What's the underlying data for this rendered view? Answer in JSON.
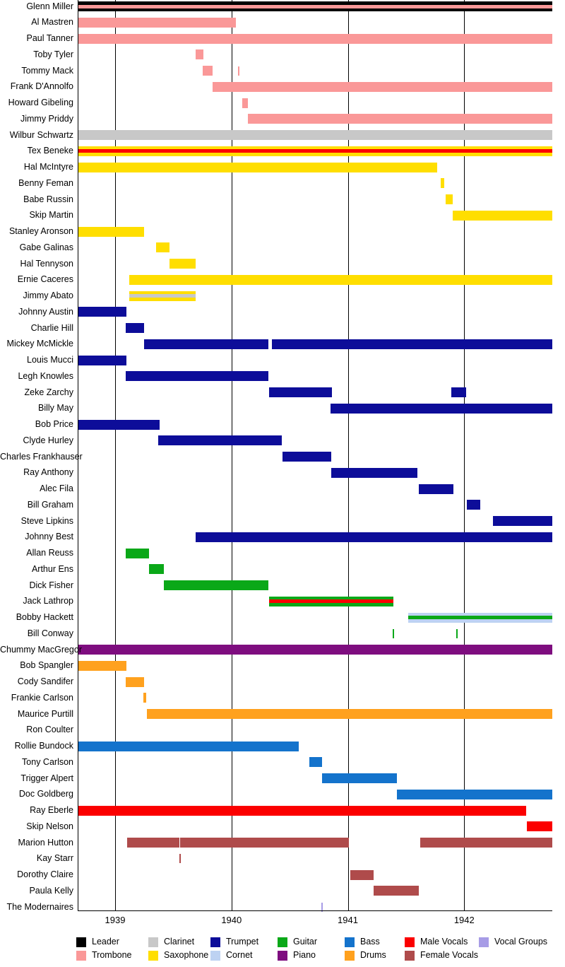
{
  "chart_data": {
    "type": "bar",
    "subtype": "gantt-timeline",
    "axis": {
      "x_min": 1938.68,
      "x_max": 1942.755,
      "tick_years": [
        1939,
        1940,
        1941,
        1942
      ],
      "grid": "vertical-lines-on"
    },
    "instruments": {
      "leader": {
        "label": "Leader",
        "color": "#000000"
      },
      "trombone": {
        "label": "Trombone",
        "color": "#FA9898"
      },
      "clarinet": {
        "label": "Clarinet",
        "color": "#C8C8C8"
      },
      "saxophone": {
        "label": "Saxophone",
        "color": "#FFDE00"
      },
      "trumpet": {
        "label": "Trumpet",
        "color": "#0D0D99"
      },
      "cornet": {
        "label": "Cornet",
        "color": "#BDD2F2"
      },
      "guitar": {
        "label": "Guitar",
        "color": "#0AA818"
      },
      "piano": {
        "label": "Piano",
        "color": "#7E0D7F"
      },
      "bass": {
        "label": "Bass",
        "color": "#1473CC"
      },
      "drums": {
        "label": "Drums",
        "color": "#FFA11E"
      },
      "male_vocals": {
        "label": "Male Vocals",
        "color": "#FB0000"
      },
      "female_vocals": {
        "label": "Female Vocals",
        "color": "#AF4B4B"
      },
      "vocal_groups": {
        "label": "Vocal Groups",
        "color": "#A79CE6"
      }
    },
    "members": [
      {
        "name": "Glenn Miller",
        "instrument": "leader",
        "stripe": "trombone",
        "segments": [
          [
            1938.68,
            1942.755
          ]
        ]
      },
      {
        "name": "Al Mastren",
        "instrument": "trombone",
        "segments": [
          [
            1938.68,
            1940.04
          ]
        ]
      },
      {
        "name": "Paul Tanner",
        "instrument": "trombone",
        "segments": [
          [
            1938.68,
            1942.755
          ]
        ]
      },
      {
        "name": "Toby Tyler",
        "instrument": "trombone",
        "segments": [
          [
            1939.69,
            1939.76
          ]
        ]
      },
      {
        "name": "Tommy Mack",
        "instrument": "trombone",
        "segments": [
          [
            1939.75,
            1939.84
          ]
        ],
        "tick_marks": [
          1940.06
        ]
      },
      {
        "name": "Frank D'Annolfo",
        "instrument": "trombone",
        "segments": [
          [
            1939.84,
            1942.755
          ]
        ]
      },
      {
        "name": "Howard Gibeling",
        "instrument": "trombone",
        "segments": [
          [
            1940.09,
            1940.14
          ]
        ]
      },
      {
        "name": "Jimmy Priddy",
        "instrument": "trombone",
        "segments": [
          [
            1940.14,
            1942.755
          ]
        ]
      },
      {
        "name": "Wilbur Schwartz",
        "instrument": "clarinet",
        "segments": [
          [
            1938.68,
            1942.755
          ]
        ]
      },
      {
        "name": "Tex Beneke",
        "instrument": "saxophone",
        "stripe": "male_vocals",
        "segments": [
          [
            1938.68,
            1942.755
          ]
        ]
      },
      {
        "name": "Hal McIntyre",
        "instrument": "saxophone",
        "segments": [
          [
            1938.68,
            1941.77
          ]
        ]
      },
      {
        "name": "Benny Feman",
        "instrument": "saxophone",
        "segments": [
          [
            1941.8,
            1941.83
          ]
        ]
      },
      {
        "name": "Babe Russin",
        "instrument": "saxophone",
        "segments": [
          [
            1941.84,
            1941.9
          ]
        ]
      },
      {
        "name": "Skip Martin",
        "instrument": "saxophone",
        "segments": [
          [
            1941.9,
            1942.755
          ]
        ]
      },
      {
        "name": "Stanley Aronson",
        "instrument": "saxophone",
        "segments": [
          [
            1938.68,
            1939.25
          ]
        ]
      },
      {
        "name": "Gabe Galinas",
        "instrument": "saxophone",
        "segments": [
          [
            1939.35,
            1939.47
          ]
        ]
      },
      {
        "name": "Hal Tennyson",
        "instrument": "saxophone",
        "segments": [
          [
            1939.47,
            1939.69
          ]
        ]
      },
      {
        "name": "Ernie Caceres",
        "instrument": "saxophone",
        "segments": [
          [
            1939.12,
            1942.755
          ]
        ]
      },
      {
        "name": "Jimmy Abato",
        "instrument": "saxophone",
        "stripe": "clarinet",
        "segments": [
          [
            1939.12,
            1939.69
          ]
        ]
      },
      {
        "name": "Johnny Austin",
        "instrument": "trumpet",
        "segments": [
          [
            1938.68,
            1939.1
          ]
        ]
      },
      {
        "name": "Charlie Hill",
        "instrument": "trumpet",
        "segments": [
          [
            1939.09,
            1939.25
          ]
        ]
      },
      {
        "name": "Mickey McMickle",
        "instrument": "trumpet",
        "segments": [
          [
            1939.25,
            1940.32
          ],
          [
            1940.35,
            1942.755
          ]
        ]
      },
      {
        "name": "Louis Mucci",
        "instrument": "trumpet",
        "segments": [
          [
            1938.68,
            1939.1
          ]
        ]
      },
      {
        "name": "Legh Knowles",
        "instrument": "trumpet",
        "segments": [
          [
            1939.09,
            1940.32
          ]
        ]
      },
      {
        "name": "Zeke Zarchy",
        "instrument": "trumpet",
        "segments": [
          [
            1940.32,
            1940.86
          ],
          [
            1941.89,
            1942.02
          ]
        ]
      },
      {
        "name": "Billy May",
        "instrument": "trumpet",
        "segments": [
          [
            1940.85,
            1942.755
          ]
        ]
      },
      {
        "name": "Bob Price",
        "instrument": "trumpet",
        "segments": [
          [
            1938.68,
            1939.38
          ]
        ]
      },
      {
        "name": "Clyde Hurley",
        "instrument": "trumpet",
        "segments": [
          [
            1939.37,
            1940.43
          ]
        ]
      },
      {
        "name": "Charles Frankhauser",
        "instrument": "trumpet",
        "segments": [
          [
            1940.44,
            1940.86
          ]
        ]
      },
      {
        "name": "Ray Anthony",
        "instrument": "trumpet",
        "segments": [
          [
            1940.86,
            1941.6
          ]
        ]
      },
      {
        "name": "Alec Fila",
        "instrument": "trumpet",
        "segments": [
          [
            1941.61,
            1941.91
          ]
        ]
      },
      {
        "name": "Bill Graham",
        "instrument": "trumpet",
        "segments": [
          [
            1942.02,
            1942.14
          ]
        ]
      },
      {
        "name": "Steve Lipkins",
        "instrument": "trumpet",
        "segments": [
          [
            1942.25,
            1942.755
          ]
        ]
      },
      {
        "name": "Johnny Best",
        "instrument": "trumpet",
        "segments": [
          [
            1939.69,
            1942.755
          ]
        ]
      },
      {
        "name": "Allan Reuss",
        "instrument": "guitar",
        "segments": [
          [
            1939.09,
            1939.29
          ]
        ]
      },
      {
        "name": "Arthur Ens",
        "instrument": "guitar",
        "segments": [
          [
            1939.29,
            1939.42
          ]
        ]
      },
      {
        "name": "Dick Fisher",
        "instrument": "guitar",
        "segments": [
          [
            1939.42,
            1940.32
          ]
        ]
      },
      {
        "name": "Jack Lathrop",
        "instrument": "guitar",
        "stripe": "male_vocals",
        "segments": [
          [
            1940.32,
            1941.39
          ]
        ]
      },
      {
        "name": "Bobby Hackett",
        "instrument": "cornet",
        "stripe": "guitar",
        "segments": [
          [
            1941.52,
            1942.755
          ]
        ]
      },
      {
        "name": "Bill Conway",
        "instrument": "guitar",
        "segments": [],
        "tick_marks": [
          1941.39,
          1941.94
        ]
      },
      {
        "name": "Chummy MacGregor",
        "instrument": "piano",
        "segments": [
          [
            1938.68,
            1942.755
          ]
        ]
      },
      {
        "name": "Bob Spangler",
        "instrument": "drums",
        "segments": [
          [
            1938.68,
            1939.1
          ]
        ]
      },
      {
        "name": "Cody Sandifer",
        "instrument": "drums",
        "segments": [
          [
            1939.09,
            1939.25
          ]
        ]
      },
      {
        "name": "Frankie Carlson",
        "instrument": "drums",
        "segments": [
          [
            1939.24,
            1939.27
          ]
        ]
      },
      {
        "name": "Maurice Purtill",
        "instrument": "drums",
        "segments": [
          [
            1939.27,
            1942.755
          ]
        ]
      },
      {
        "name": "Ron Coulter",
        "instrument": "drums",
        "segments": []
      },
      {
        "name": "Rollie Bundock",
        "instrument": "bass",
        "segments": [
          [
            1938.68,
            1940.58
          ]
        ]
      },
      {
        "name": "Tony Carlson",
        "instrument": "bass",
        "segments": [
          [
            1940.67,
            1940.78
          ]
        ]
      },
      {
        "name": "Trigger Alpert",
        "instrument": "bass",
        "segments": [
          [
            1940.78,
            1941.42
          ]
        ]
      },
      {
        "name": "Doc Goldberg",
        "instrument": "bass",
        "segments": [
          [
            1941.42,
            1942.755
          ]
        ]
      },
      {
        "name": "Ray Eberle",
        "instrument": "male_vocals",
        "segments": [
          [
            1938.68,
            1942.53
          ]
        ]
      },
      {
        "name": "Skip Nelson",
        "instrument": "male_vocals",
        "segments": [
          [
            1942.54,
            1942.755
          ]
        ]
      },
      {
        "name": "Marion Hutton",
        "instrument": "female_vocals",
        "segments": [
          [
            1939.1,
            1939.55
          ],
          [
            1939.56,
            1941.01
          ],
          [
            1941.62,
            1942.755
          ]
        ]
      },
      {
        "name": "Kay Starr",
        "instrument": "female_vocals",
        "segments": [],
        "tick_marks": [
          1939.56
        ]
      },
      {
        "name": "Dorothy Claire",
        "instrument": "female_vocals",
        "segments": [
          [
            1941.02,
            1941.22
          ]
        ]
      },
      {
        "name": "Paula Kelly",
        "instrument": "female_vocals",
        "segments": [
          [
            1941.22,
            1941.61
          ]
        ]
      },
      {
        "name": "The Modernaires",
        "instrument": "vocal_groups",
        "segments": [],
        "tick_marks": [
          1940.78
        ]
      }
    ],
    "legend_columns": [
      [
        "leader",
        "trombone"
      ],
      [
        "clarinet",
        "saxophone"
      ],
      [
        "trumpet",
        "cornet"
      ],
      [
        "guitar",
        "piano"
      ],
      [
        "bass",
        "drums"
      ],
      [
        "male_vocals",
        "female_vocals"
      ],
      [
        "vocal_groups"
      ]
    ]
  },
  "layout_values": {
    "year_labels": [
      "1939",
      "1940",
      "1941",
      "1942"
    ]
  }
}
